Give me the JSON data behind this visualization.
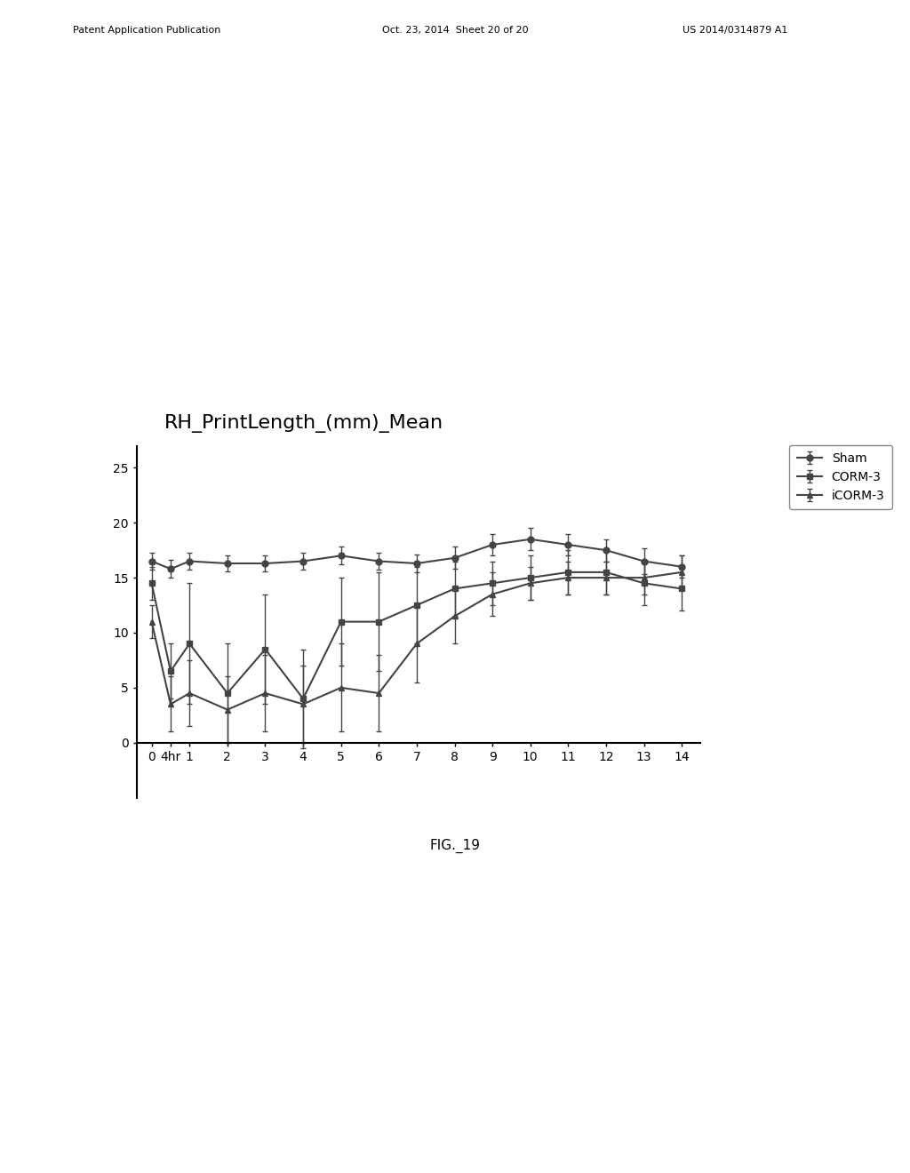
{
  "title": "RH_PrintLength_(mm)_Mean",
  "title_fontsize": 16,
  "background_color": "#ffffff",
  "x_labels": [
    "0",
    "4hr",
    "1",
    "2",
    "3",
    "4",
    "5",
    "6",
    "7",
    "8",
    "9",
    "10",
    "11",
    "12",
    "13",
    "14"
  ],
  "x_numeric": [
    0,
    0.5,
    1,
    2,
    3,
    4,
    5,
    6,
    7,
    8,
    9,
    10,
    11,
    12,
    13,
    14
  ],
  "ylim": [
    -5,
    27
  ],
  "yticks": [
    0,
    5,
    10,
    15,
    20,
    25
  ],
  "header_line1": "Patent Application Publication",
  "header_line2": "Oct. 23, 2014  Sheet 20 of 20",
  "header_line3": "US 2014/0314879 A1",
  "fig_label": "FIG._19",
  "sham_y": [
    16.5,
    15.8,
    16.5,
    16.3,
    16.3,
    16.5,
    17.0,
    16.5,
    16.3,
    16.8,
    18.0,
    18.5,
    18.0,
    17.5,
    16.5,
    16.0
  ],
  "sham_err": [
    0.8,
    0.8,
    0.8,
    0.7,
    0.7,
    0.8,
    0.8,
    0.8,
    0.8,
    1.0,
    1.0,
    1.0,
    1.0,
    1.0,
    1.2,
    1.0
  ],
  "corm3_y": [
    14.5,
    6.5,
    9.0,
    4.5,
    8.5,
    4.0,
    11.0,
    11.0,
    12.5,
    14.0,
    14.5,
    15.0,
    15.5,
    15.5,
    14.5,
    14.0
  ],
  "corm3_err": [
    1.5,
    2.5,
    5.5,
    4.5,
    5.0,
    4.5,
    4.0,
    4.5,
    3.5,
    2.5,
    2.0,
    2.0,
    2.0,
    2.0,
    2.0,
    2.0
  ],
  "icorm3_y": [
    11.0,
    3.5,
    4.5,
    3.0,
    4.5,
    3.5,
    5.0,
    4.5,
    9.0,
    11.5,
    13.5,
    14.5,
    15.0,
    15.0,
    15.0,
    15.5
  ],
  "icorm3_err": [
    1.5,
    2.5,
    3.0,
    3.0,
    3.5,
    3.5,
    4.0,
    3.5,
    3.5,
    2.5,
    2.0,
    1.5,
    1.5,
    1.5,
    1.5,
    1.5
  ],
  "line_color": "#444444",
  "legend_labels": [
    "Sham",
    "CORM-3",
    "iCORM-3"
  ]
}
